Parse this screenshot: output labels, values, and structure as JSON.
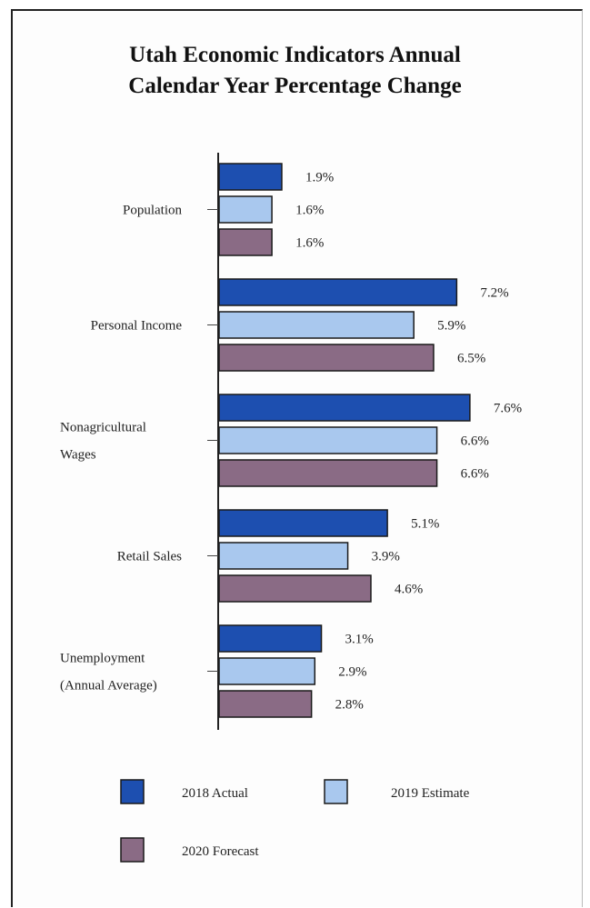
{
  "chart_data": {
    "type": "bar",
    "orientation": "horizontal",
    "title_lines": [
      "Utah Economic Indicators Annual",
      "Calendar Year Percentage Change"
    ],
    "categories": [
      [
        "Population"
      ],
      [
        "Personal Income"
      ],
      [
        "Nonagricultural",
        "Wages"
      ],
      [
        "Retail Sales"
      ],
      [
        "Unemployment",
        "(Annual Average)"
      ]
    ],
    "series": [
      {
        "name": "2018 Actual",
        "color": "#1d4fb0",
        "values": [
          1.9,
          7.2,
          7.6,
          5.1,
          3.1
        ],
        "labels": [
          "1.9%",
          "7.2%",
          "7.6%",
          "5.1%",
          "3.1%"
        ]
      },
      {
        "name": "2019 Estimate",
        "color": "#a9c8ee",
        "values": [
          1.6,
          5.9,
          6.6,
          3.9,
          2.9
        ],
        "labels": [
          "1.6%",
          "5.9%",
          "6.6%",
          "3.9%",
          "2.9%"
        ]
      },
      {
        "name": "2020 Forecast",
        "color": "#8a6b85",
        "values": [
          1.6,
          6.5,
          6.6,
          4.6,
          2.8
        ],
        "labels": [
          "1.6%",
          "6.5%",
          "6.6%",
          "4.6%",
          "2.8%"
        ]
      }
    ],
    "xlim": [
      0,
      9
    ],
    "grid": false,
    "legend_position": "bottom"
  }
}
